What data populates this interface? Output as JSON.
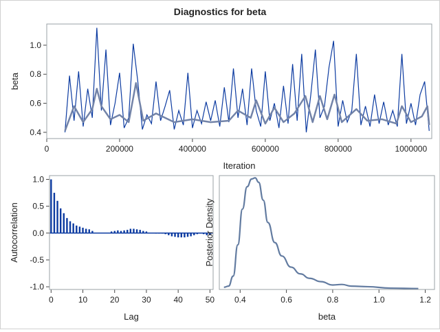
{
  "title": "Diagnostics for beta",
  "colors": {
    "trace": "#0b3aa0",
    "smooth": "#7283a8",
    "acf": "#0b3aa0",
    "density": "#627ba0",
    "frame": "#9aa0a6"
  },
  "chart_data": [
    {
      "type": "line",
      "name": "trace",
      "xlabel": "Iteration",
      "ylabel": "beta",
      "xlim": [
        0,
        1057000
      ],
      "ylim": [
        0.357,
        1.146
      ],
      "xticks": [
        0,
        200000,
        400000,
        600000,
        800000,
        1000000
      ],
      "xtick_labels": [
        "0",
        "200000",
        "400000",
        "600000",
        "800000",
        "1000000"
      ],
      "yticks": [
        0.4,
        0.6,
        0.8,
        1.0
      ],
      "ytick_labels": [
        "0.4",
        "0.6",
        "0.8",
        "1.0"
      ],
      "x": [
        50000,
        62500,
        75000,
        87500,
        100000,
        112500,
        125000,
        137500,
        150000,
        162500,
        175000,
        187500,
        200000,
        212500,
        225000,
        237500,
        250000,
        262500,
        275000,
        287500,
        300000,
        312500,
        325000,
        337500,
        350000,
        362500,
        375000,
        387500,
        400000,
        412500,
        425000,
        437500,
        450000,
        462500,
        475000,
        487500,
        500000,
        512500,
        525000,
        537500,
        550000,
        562500,
        575000,
        587500,
        600000,
        612500,
        625000,
        637500,
        650000,
        662500,
        675000,
        687500,
        700000,
        712500,
        725000,
        737500,
        750000,
        762500,
        775000,
        787500,
        800000,
        812500,
        825000,
        837500,
        850000,
        862500,
        875000,
        887500,
        900000,
        912500,
        925000,
        937500,
        950000,
        962500,
        975000,
        987500,
        1000000,
        1012500,
        1025000,
        1037500,
        1050000
      ],
      "values": [
        0.4,
        0.79,
        0.48,
        0.82,
        0.44,
        0.7,
        0.5,
        1.12,
        0.55,
        0.97,
        0.45,
        0.6,
        0.81,
        0.43,
        0.5,
        1.01,
        0.75,
        0.42,
        0.52,
        0.46,
        0.75,
        0.48,
        0.58,
        0.69,
        0.42,
        0.55,
        0.45,
        0.81,
        0.43,
        0.55,
        0.46,
        0.61,
        0.48,
        0.62,
        0.44,
        0.71,
        0.47,
        0.84,
        0.5,
        0.7,
        0.45,
        0.84,
        0.55,
        0.44,
        0.82,
        0.48,
        0.6,
        0.43,
        0.72,
        0.46,
        0.87,
        0.48,
        0.94,
        0.4,
        0.66,
        0.97,
        0.5,
        0.58,
        0.85,
        1.03,
        0.44,
        0.62,
        0.47,
        0.55,
        0.94,
        0.45,
        0.58,
        0.44,
        0.66,
        0.46,
        0.61,
        0.45,
        0.55,
        0.44,
        0.94,
        0.46,
        0.6,
        0.45,
        0.66,
        0.75,
        0.41
      ],
      "smooth_x": [
        50000,
        75000,
        100000,
        125000,
        137500,
        150000,
        175000,
        200000,
        225000,
        245000,
        265000,
        300000,
        350000,
        400000,
        450000,
        500000,
        525000,
        560000,
        575000,
        600000,
        625000,
        650000,
        680000,
        710000,
        730000,
        750000,
        770000,
        790000,
        810000,
        850000,
        880000,
        920000,
        960000,
        975000,
        1000000,
        1030000,
        1045000,
        1050000
      ],
      "smooth_values": [
        0.41,
        0.58,
        0.47,
        0.56,
        0.7,
        0.58,
        0.49,
        0.52,
        0.47,
        0.74,
        0.48,
        0.53,
        0.47,
        0.49,
        0.47,
        0.48,
        0.55,
        0.5,
        0.62,
        0.46,
        0.57,
        0.47,
        0.53,
        0.65,
        0.47,
        0.65,
        0.49,
        0.66,
        0.47,
        0.56,
        0.48,
        0.49,
        0.46,
        0.58,
        0.47,
        0.51,
        0.58,
        0.45
      ]
    },
    {
      "type": "bar",
      "name": "autocorrelation",
      "xlabel": "Lag",
      "ylabel": "Autocorrelation",
      "xlim": [
        -0.5,
        51
      ],
      "ylim": [
        -1.05,
        1.07
      ],
      "xticks": [
        0,
        10,
        20,
        30,
        40,
        50
      ],
      "xtick_labels": [
        "0",
        "10",
        "20",
        "30",
        "40",
        "50"
      ],
      "yticks": [
        -1.0,
        -0.5,
        0.0,
        0.5,
        1.0
      ],
      "ytick_labels": [
        "-1.0",
        "-0.5",
        "0.0",
        "0.5",
        "1.0"
      ],
      "values": [
        1.0,
        0.75,
        0.6,
        0.46,
        0.37,
        0.28,
        0.22,
        0.18,
        0.14,
        0.12,
        0.1,
        0.08,
        0.07,
        0.04,
        0.01,
        0,
        0,
        0.01,
        0.01,
        0.03,
        0.04,
        0.05,
        0.04,
        0.05,
        0.06,
        0.08,
        0.08,
        0.07,
        0.06,
        0.04,
        0.03,
        0.01,
        0,
        -0.01,
        -0.01,
        -0.01,
        -0.02,
        -0.04,
        -0.06,
        -0.07,
        -0.08,
        -0.08,
        -0.08,
        -0.07,
        -0.06,
        -0.04,
        -0.02,
        -0.01,
        -0.02,
        -0.04,
        -0.04
      ]
    },
    {
      "type": "line",
      "name": "posterior-density",
      "xlabel": "beta",
      "ylabel": "Posterior Density",
      "xlim": [
        0.31,
        1.24
      ],
      "ylim": [
        0,
        1.02
      ],
      "xticks": [
        0.4,
        0.6,
        0.8,
        1.0,
        1.2
      ],
      "xtick_labels": [
        "0.4",
        "0.6",
        "0.8",
        "1.0",
        "1.2"
      ],
      "x": [
        0.33,
        0.35,
        0.37,
        0.39,
        0.41,
        0.43,
        0.45,
        0.465,
        0.48,
        0.5,
        0.52,
        0.55,
        0.58,
        0.62,
        0.66,
        0.7,
        0.75,
        0.8,
        0.84,
        0.88,
        0.95,
        1.05,
        1.17
      ],
      "values": [
        0.02,
        0.03,
        0.12,
        0.4,
        0.72,
        0.92,
        0.99,
        1.0,
        0.96,
        0.8,
        0.6,
        0.42,
        0.3,
        0.2,
        0.14,
        0.1,
        0.07,
        0.04,
        0.045,
        0.03,
        0.025,
        0.012,
        0.008
      ]
    }
  ]
}
